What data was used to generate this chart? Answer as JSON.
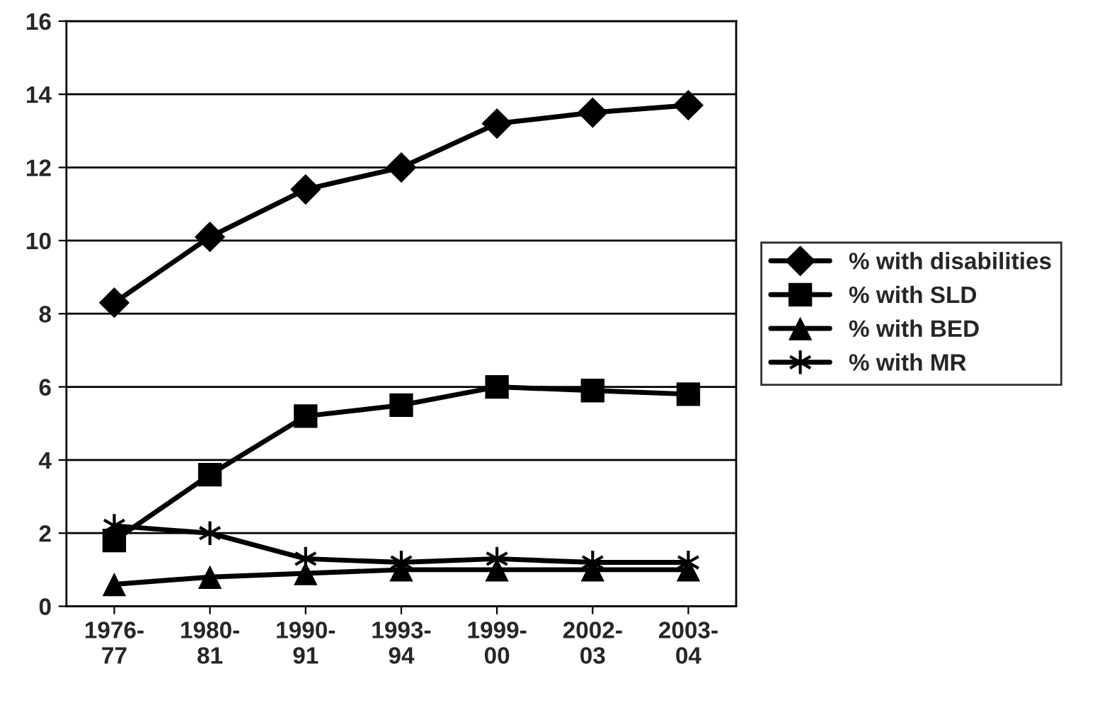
{
  "chart_data": {
    "type": "line",
    "categories": [
      "1976-\n77",
      "1980-\n81",
      "1990-\n91",
      "1993-\n94",
      "1999-\n00",
      "2002-\n03",
      "2003-\n04"
    ],
    "series": [
      {
        "name": "% with disabilities",
        "color": "#000000",
        "marker": "diamond",
        "values": [
          8.3,
          10.1,
          11.4,
          12.0,
          13.2,
          13.5,
          13.7
        ]
      },
      {
        "name": "% with SLD",
        "color": "#000000",
        "marker": "square",
        "values": [
          1.8,
          3.6,
          5.2,
          5.5,
          6.0,
          5.9,
          5.8
        ]
      },
      {
        "name": "% with BED",
        "color": "#000000",
        "marker": "triangle",
        "values": [
          0.6,
          0.8,
          0.9,
          1.0,
          1.0,
          1.0,
          1.0
        ]
      },
      {
        "name": "% with MR",
        "color": "#000000",
        "marker": "cross",
        "values": [
          2.2,
          2.0,
          1.3,
          1.2,
          1.3,
          1.2,
          1.2
        ]
      }
    ],
    "ylim": [
      0,
      16
    ],
    "yticks": [
      0,
      2,
      4,
      6,
      8,
      10,
      12,
      14,
      16
    ],
    "grid": "y",
    "legend": "right",
    "line_style": "solid"
  }
}
